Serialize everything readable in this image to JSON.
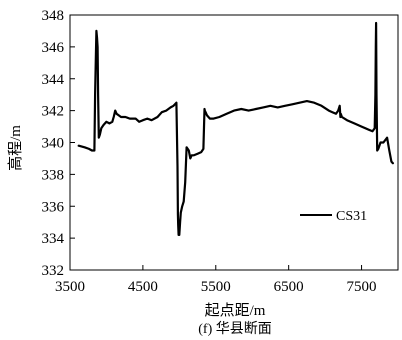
{
  "chart_data": {
    "type": "line",
    "caption": "(f) 华县断面",
    "xlabel": "起点距/m",
    "ylabel": "高程/m",
    "xlim": [
      3500,
      8000
    ],
    "ylim": [
      332,
      348
    ],
    "xticks": [
      3500,
      4500,
      5500,
      6500,
      7500
    ],
    "yticks": [
      332,
      334,
      336,
      338,
      340,
      342,
      344,
      346,
      348
    ],
    "grid": false,
    "legend_position": "lower-right",
    "series": [
      {
        "name": "CS31",
        "color": "#000000",
        "x": [
          3620,
          3700,
          3760,
          3800,
          3835,
          3845,
          3855,
          3862,
          3870,
          3878,
          3885,
          3895,
          3910,
          3930,
          3960,
          4000,
          4040,
          4080,
          4100,
          4120,
          4140,
          4170,
          4200,
          4260,
          4320,
          4400,
          4450,
          4500,
          4560,
          4620,
          4700,
          4760,
          4820,
          4880,
          4920,
          4960,
          4975,
          4980,
          4985,
          4990,
          5000,
          5010,
          5020,
          5040,
          5060,
          5080,
          5100,
          5130,
          5150,
          5170,
          5200,
          5250,
          5300,
          5330,
          5345,
          5350,
          5360,
          5380,
          5420,
          5470,
          5550,
          5650,
          5750,
          5850,
          5950,
          6050,
          6150,
          6250,
          6350,
          6450,
          6550,
          6650,
          6750,
          6850,
          6950,
          7050,
          7100,
          7150,
          7180,
          7200,
          7210,
          7215,
          7230,
          7300,
          7400,
          7500,
          7600,
          7650,
          7680,
          7690,
          7695,
          7700,
          7705,
          7715,
          7730,
          7760,
          7800,
          7850,
          7880,
          7910,
          7930
        ],
        "y": [
          339.8,
          339.7,
          339.6,
          339.5,
          339.5,
          343.0,
          345.5,
          347.0,
          346.6,
          346.0,
          343.0,
          340.3,
          340.5,
          340.9,
          341.1,
          341.3,
          341.2,
          341.3,
          341.6,
          342.0,
          341.8,
          341.7,
          341.6,
          341.6,
          341.5,
          341.5,
          341.3,
          341.4,
          341.5,
          341.4,
          341.6,
          341.9,
          342.0,
          342.2,
          342.3,
          342.5,
          338.5,
          335.5,
          334.8,
          334.2,
          334.2,
          335.0,
          335.6,
          336.0,
          336.3,
          337.5,
          339.7,
          339.5,
          339.0,
          339.2,
          339.2,
          339.3,
          339.4,
          339.6,
          342.1,
          342.0,
          341.9,
          341.7,
          341.5,
          341.5,
          341.6,
          341.8,
          342.0,
          342.1,
          342.0,
          342.1,
          342.2,
          342.3,
          342.2,
          342.3,
          342.4,
          342.5,
          342.6,
          342.5,
          342.3,
          342.0,
          341.9,
          341.8,
          342.0,
          342.3,
          341.6,
          341.8,
          341.6,
          341.4,
          341.2,
          341.0,
          340.8,
          340.7,
          340.9,
          343.0,
          346.0,
          347.5,
          343.0,
          339.5,
          339.6,
          340.0,
          340.0,
          340.3,
          339.5,
          338.8,
          338.7
        ]
      }
    ]
  }
}
